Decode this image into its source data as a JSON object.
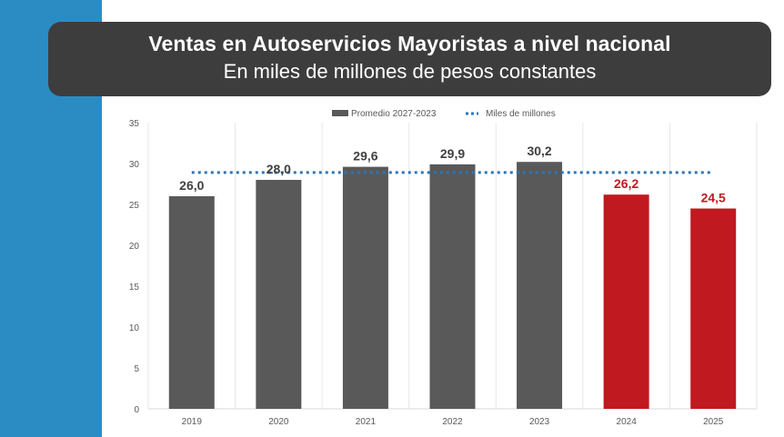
{
  "header": {
    "title": "Ventas en Autoservicios Mayoristas a nivel nacional",
    "subtitle": "En miles de millones de pesos constantes"
  },
  "colors": {
    "side_band": "#2b8cc4",
    "title_box": "#3d3d3d",
    "bar_gray": "#595959",
    "bar_red": "#c0191f",
    "average_line": "#2e75b6",
    "grid": "#e6e6e6"
  },
  "chart_data": {
    "type": "bar",
    "categories": [
      "2019",
      "2020",
      "2021",
      "2022",
      "2023",
      "2024",
      "2025"
    ],
    "values": [
      26.0,
      28.0,
      29.6,
      29.9,
      30.2,
      26.2,
      24.5
    ],
    "value_labels": [
      "26,0",
      "28,0",
      "29,6",
      "29,9",
      "30,2",
      "26,2",
      "24,5"
    ],
    "bar_colors": [
      "gray",
      "gray",
      "gray",
      "gray",
      "gray",
      "red",
      "red"
    ],
    "average_line": {
      "value": 28.9,
      "from": "2019",
      "to": "2025"
    },
    "ylim": [
      0,
      35
    ],
    "yticks": [
      "0",
      "5",
      "10",
      "15",
      "20",
      "25",
      "30",
      "35"
    ],
    "legend": {
      "placement": "top-center",
      "entries": [
        {
          "name": "Promedio 2027-2023",
          "marker": "bar"
        },
        {
          "name": "Miles de millones",
          "marker": "dotted-line"
        }
      ]
    },
    "grid": "vertical-category-separators",
    "xlabel": "",
    "ylabel": ""
  }
}
